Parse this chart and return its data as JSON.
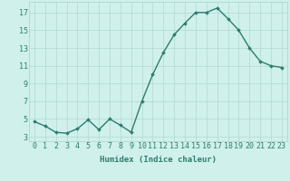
{
  "x": [
    0,
    1,
    2,
    3,
    4,
    5,
    6,
    7,
    8,
    9,
    10,
    11,
    12,
    13,
    14,
    15,
    16,
    17,
    18,
    19,
    20,
    21,
    22,
    23
  ],
  "y": [
    4.7,
    4.2,
    3.5,
    3.4,
    3.9,
    4.9,
    3.8,
    5.0,
    4.3,
    3.5,
    7.0,
    10.0,
    12.5,
    14.5,
    15.8,
    17.0,
    17.0,
    17.5,
    16.3,
    15.0,
    13.0,
    11.5,
    11.0,
    10.8
  ],
  "line_color": "#2e7d6e",
  "marker": "D",
  "marker_size": 1.8,
  "bg_color": "#cff0eb",
  "grid_color": "#b0d8d0",
  "xlabel": "Humidex (Indice chaleur)",
  "xlim": [
    -0.5,
    23.5
  ],
  "ylim": [
    2.5,
    18.2
  ],
  "yticks": [
    3,
    5,
    7,
    9,
    11,
    13,
    15,
    17
  ],
  "xticks": [
    0,
    1,
    2,
    3,
    4,
    5,
    6,
    7,
    8,
    9,
    10,
    11,
    12,
    13,
    14,
    15,
    16,
    17,
    18,
    19,
    20,
    21,
    22,
    23
  ],
  "xlabel_fontsize": 6.5,
  "tick_fontsize": 6.0,
  "line_width": 1.0
}
